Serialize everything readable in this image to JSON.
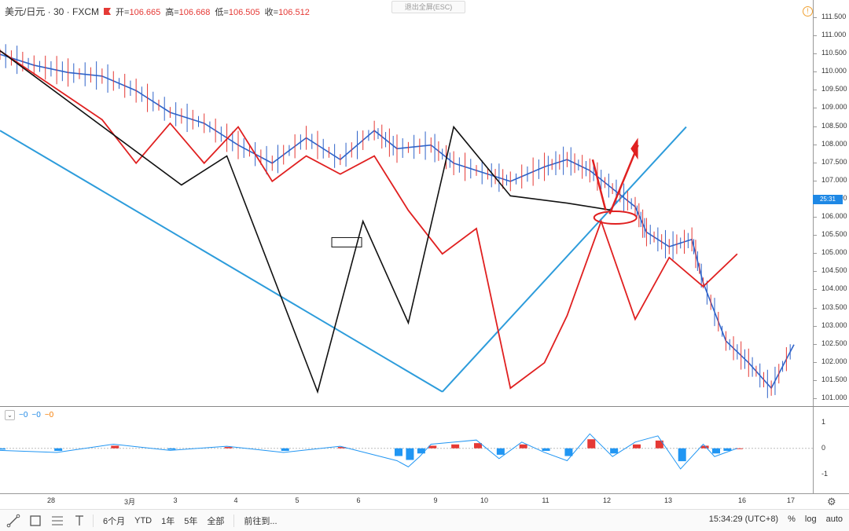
{
  "legend": {
    "symbol": "美元/日元 · 30 · FXCM",
    "open_label": "开=",
    "open": "106.665",
    "high_label": "高=",
    "high": "106.668",
    "low_label": "低=",
    "low": "106.505",
    "close_label": "收=",
    "close": "106.512"
  },
  "esc_label": "退出全屏(ESC)",
  "current_price_tag": "25:31",
  "osc_legend": {
    "v1": "−0",
    "v2": "−0",
    "v3": "−0"
  },
  "colors": {
    "price_line": "#2f63c9",
    "zigzag_red": "#e02020",
    "zigzag_black": "#111111",
    "trend_blue": "#2d9cdb",
    "hist_red": "#e53935",
    "hist_blue": "#2196f3"
  },
  "toolbar": {
    "range_6m": "6个月",
    "range_ytd": "YTD",
    "range_1y": "1年",
    "range_5y": "5年",
    "range_all": "全部",
    "goto": "前往到...",
    "clock": "15:34:29 (UTC+8)",
    "percent": "%",
    "log": "log",
    "auto": "auto"
  },
  "icons": [
    "trendline-icon",
    "rectangle-icon",
    "fib-icon",
    "text-icon",
    "settings-gear-icon",
    "alert-icon"
  ],
  "chart_data": {
    "type": "line",
    "title": "",
    "y_axis_ticks": [
      "111.500",
      "111.000",
      "110.500",
      "110.000",
      "109.500",
      "109.000",
      "108.500",
      "108.000",
      "107.500",
      "107.000",
      "106.500",
      "106.000",
      "105.500",
      "105.000",
      "104.500",
      "104.000",
      "103.500",
      "103.000",
      "102.500",
      "102.000",
      "101.500",
      "101.000"
    ],
    "x_axis_ticks": [
      "28",
      "3月",
      "3",
      "4",
      "5",
      "6",
      "9",
      "10",
      "11",
      "12",
      "13",
      "16",
      "17"
    ],
    "osc_axis_ticks": [
      "1",
      "0",
      "-1"
    ],
    "price_series": {
      "name": "",
      "x": [
        0,
        6,
        12,
        18,
        24,
        30,
        36,
        42,
        48,
        54,
        60,
        66,
        70,
        76,
        80,
        86,
        90,
        96,
        100,
        104,
        108,
        112,
        114,
        118,
        122,
        124,
        128,
        132,
        136,
        140
      ],
      "y": [
        110.5,
        110.2,
        110.0,
        109.9,
        109.5,
        108.9,
        108.6,
        108.0,
        107.5,
        108.2,
        107.6,
        108.4,
        107.9,
        108.0,
        107.5,
        107.2,
        107.0,
        107.4,
        107.6,
        107.3,
        106.8,
        106.3,
        105.6,
        105.2,
        105.4,
        104.2,
        102.6,
        102.0,
        101.3,
        102.5
      ]
    },
    "zigzag_red": {
      "x": [
        0,
        18,
        24,
        30,
        36,
        42,
        48,
        54,
        60,
        66,
        72,
        78,
        84,
        90,
        96,
        100,
        106,
        112,
        118,
        124,
        130
      ],
      "y": [
        110.6,
        108.7,
        107.5,
        108.6,
        107.5,
        108.5,
        107.0,
        107.7,
        107.2,
        107.7,
        106.2,
        105.0,
        105.7,
        101.3,
        102.0,
        103.3,
        105.9,
        103.2,
        104.9,
        104.1,
        105.0
      ]
    },
    "zigzag_black": {
      "x": [
        0,
        32,
        40,
        56,
        64,
        72,
        80,
        90,
        100,
        108
      ],
      "y": [
        110.6,
        106.9,
        107.7,
        101.2,
        105.9,
        103.1,
        108.5,
        106.6,
        106.4,
        106.2
      ]
    },
    "trendlines": [
      {
        "from": {
          "x": 0,
          "y": 108.4
        },
        "to": {
          "x": 78,
          "y": 101.2
        }
      },
      {
        "from": {
          "x": 78,
          "y": 101.2
        },
        "to": {
          "x": 121,
          "y": 108.5
        }
      }
    ],
    "oscillator": {
      "hist_x": [
        0,
        10,
        20,
        30,
        40,
        50,
        60,
        70,
        72,
        74,
        76,
        80,
        84,
        88,
        92,
        96,
        100,
        104,
        108,
        112,
        116,
        120,
        124,
        126,
        128,
        130
      ],
      "hist": [
        -0.05,
        -0.1,
        0.1,
        -0.05,
        0.05,
        -0.1,
        0.05,
        -0.3,
        -0.45,
        -0.2,
        0.1,
        0.15,
        0.2,
        -0.25,
        0.15,
        -0.1,
        -0.3,
        0.35,
        -0.2,
        0.15,
        0.3,
        -0.5,
        0.1,
        -0.2,
        -0.1,
        0.0
      ],
      "ylim": [
        -1.5,
        1.3
      ]
    }
  }
}
